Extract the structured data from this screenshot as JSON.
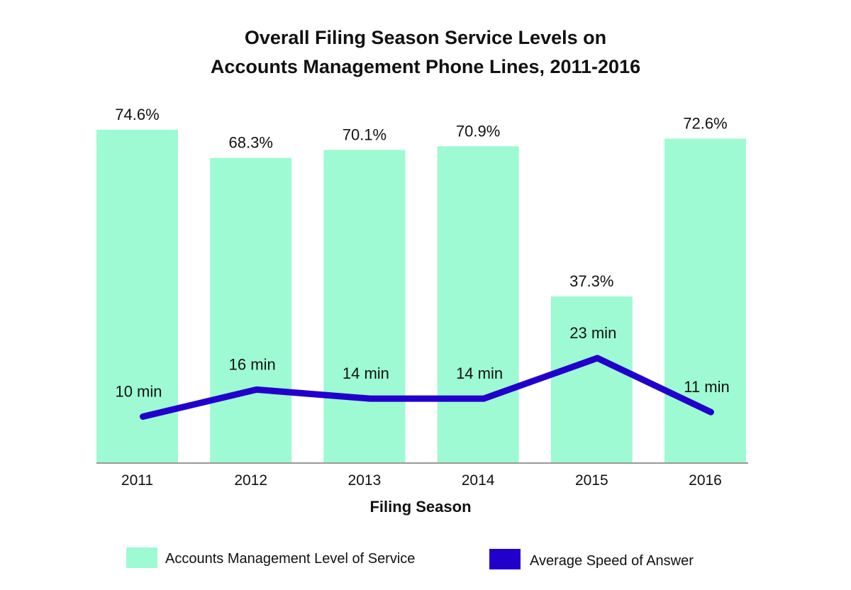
{
  "chart_data": {
    "type": "bar",
    "title": [
      "Overall Filing Season Service Levels on",
      "Accounts Management Phone Lines, 2011-2016"
    ],
    "xlabel": "Filing Season",
    "ylabel": "",
    "categories": [
      "2011",
      "2012",
      "2013",
      "2014",
      "2015",
      "2016"
    ],
    "ylim": [
      0,
      80
    ],
    "grid": false,
    "legend_position": "bottom",
    "series": [
      {
        "name": "Accounts Management Level of Service",
        "type": "bar",
        "color": "#9efad2",
        "values": [
          74.6,
          68.3,
          70.1,
          70.9,
          37.3,
          72.6
        ],
        "labels": [
          "74.6%",
          "68.3%",
          "70.1%",
          "70.9%",
          "37.3%",
          "72.6%"
        ]
      },
      {
        "name": "Average Speed of Answer",
        "type": "line",
        "color": "#2200cc",
        "values": [
          10,
          16,
          14,
          14,
          23,
          11
        ],
        "labels": [
          "10 min",
          "16 min",
          "14 min",
          "14 min",
          "23 min",
          "11 min"
        ]
      }
    ]
  }
}
